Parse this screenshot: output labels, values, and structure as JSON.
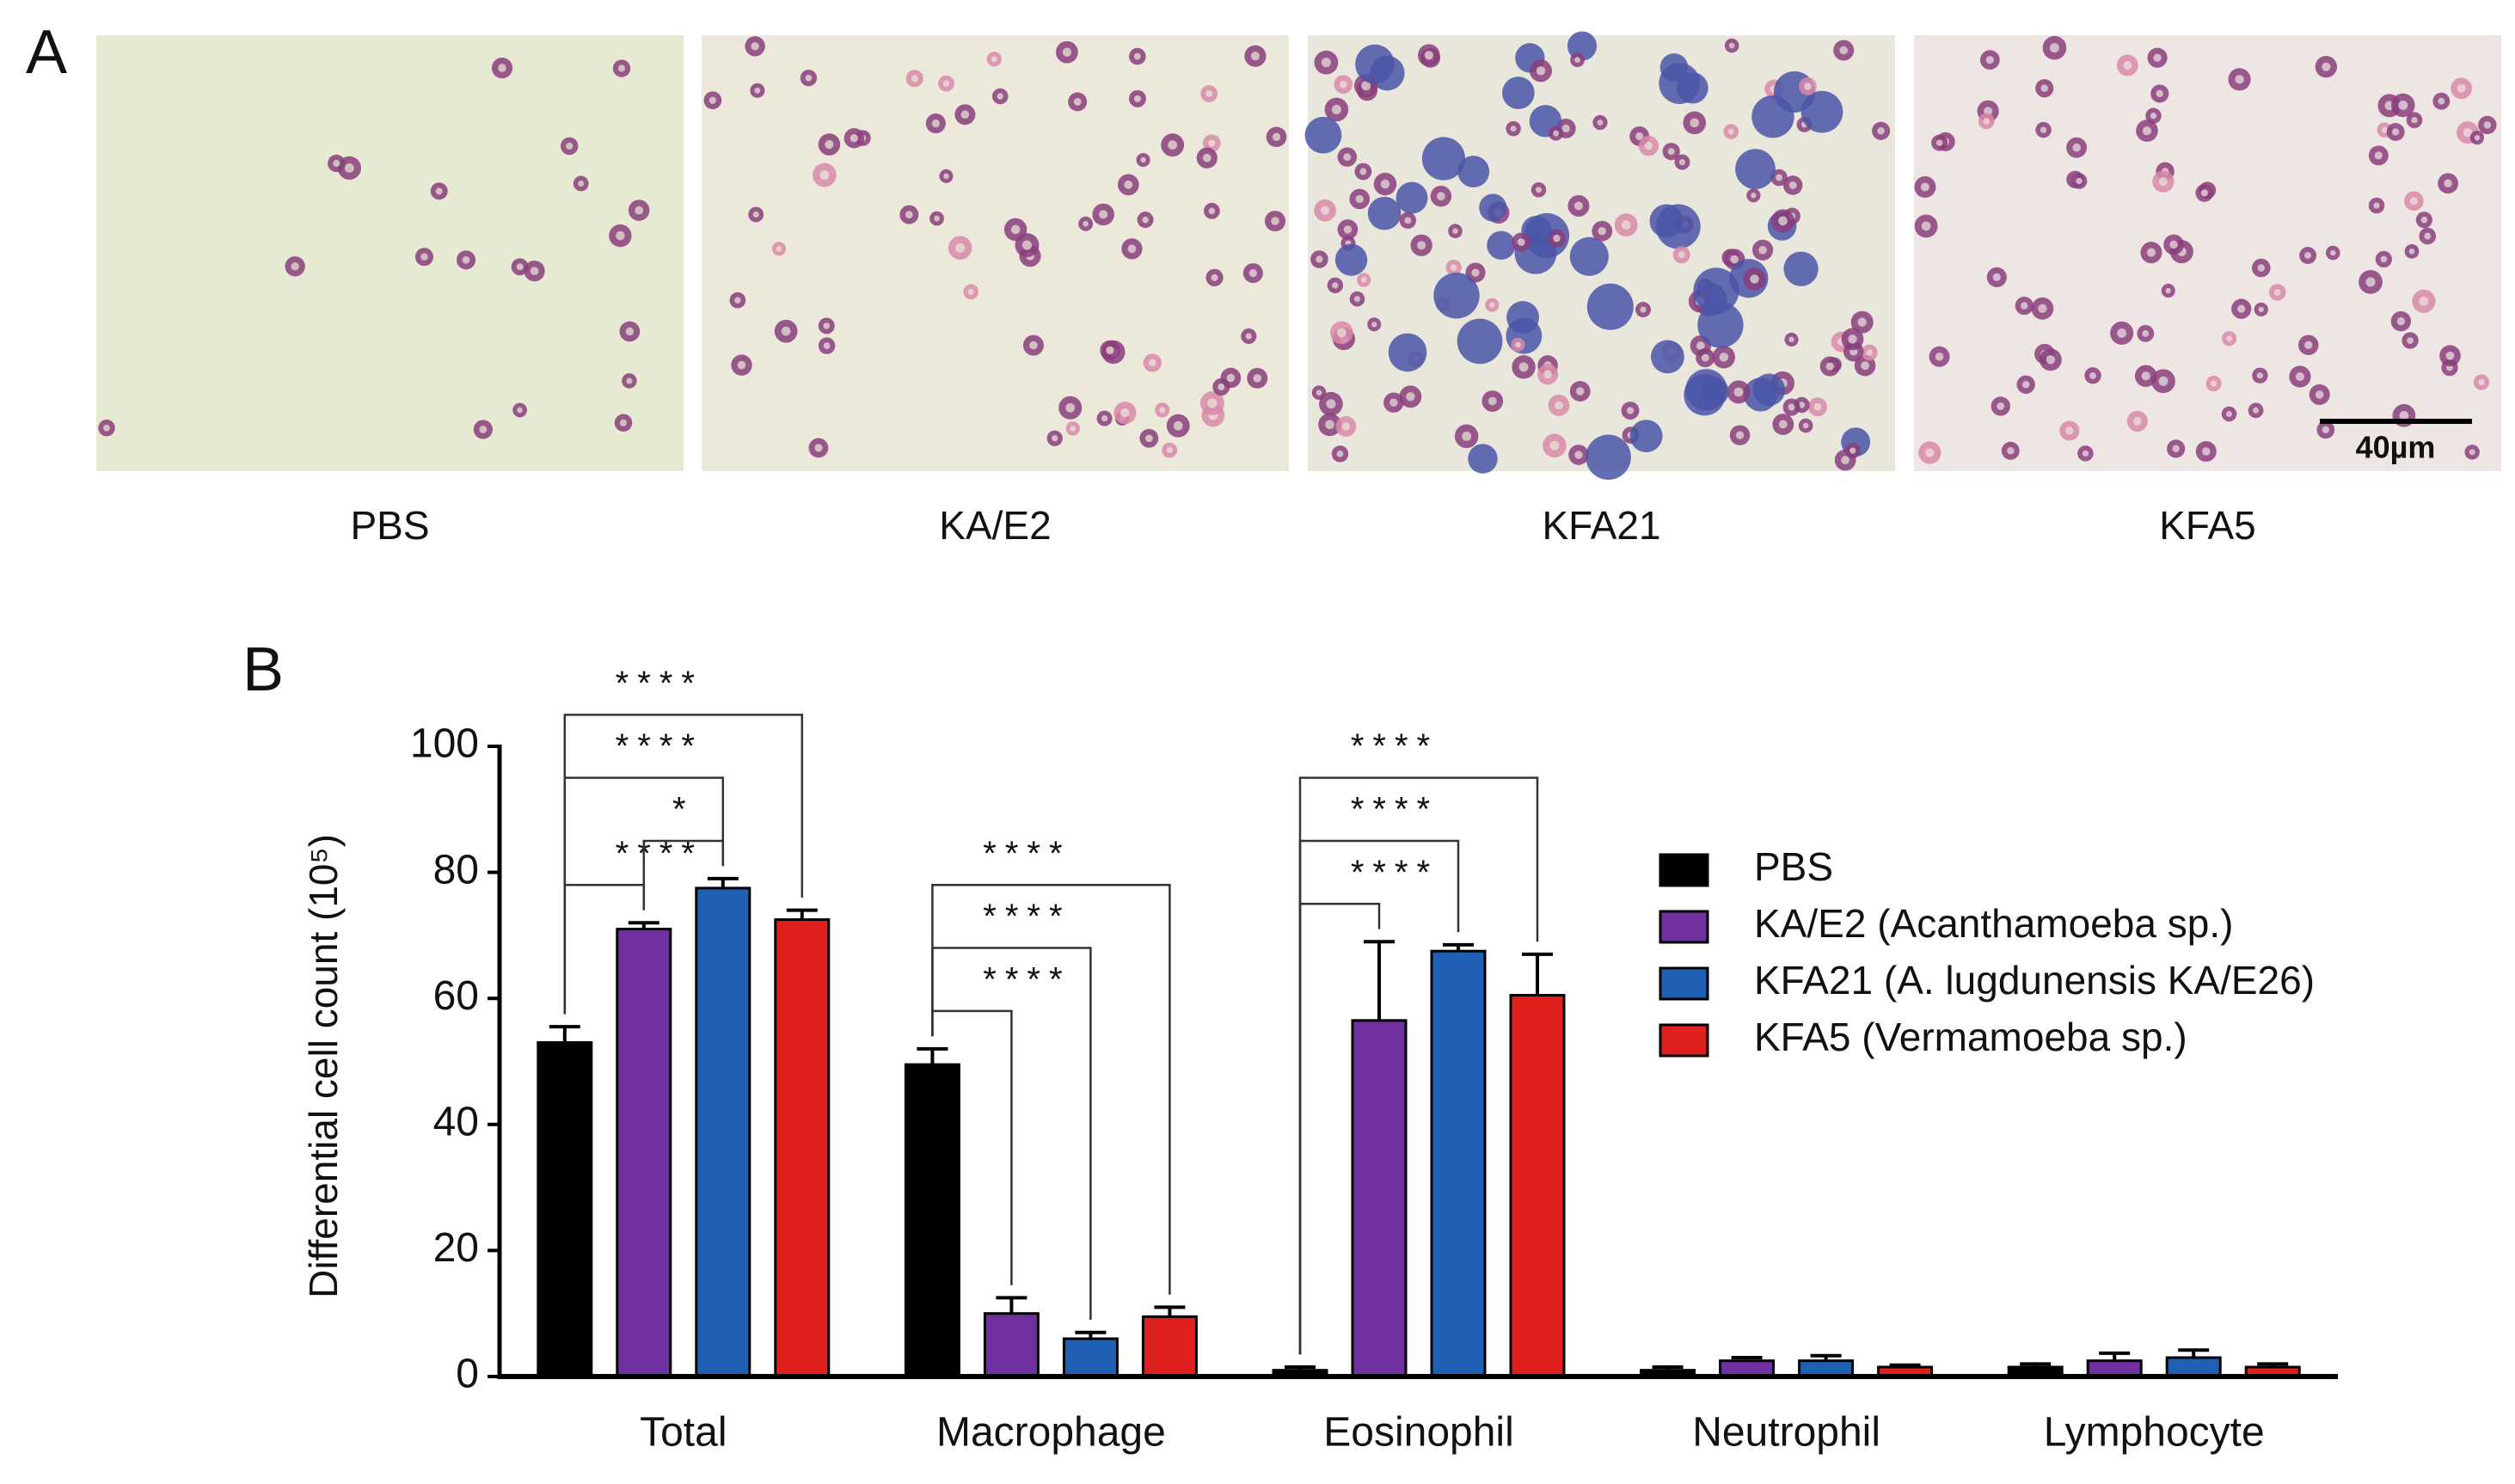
{
  "panel_a": {
    "label": "A",
    "images": [
      {
        "caption": "PBS"
      },
      {
        "caption": "KA/E2"
      },
      {
        "caption": "KFA21"
      },
      {
        "caption": "KFA5"
      }
    ],
    "scale_bar": "40µm"
  },
  "panel_b": {
    "label": "B"
  },
  "chart_data": {
    "type": "bar",
    "y_label": "Differential cell count (10⁵)",
    "categories": [
      "Total",
      "Macrophage",
      "Eosinophil",
      "Neutrophil",
      "Lymphocyte"
    ],
    "series": [
      {
        "name": "PBS",
        "color": "#000000",
        "values": [
          53,
          49.5,
          1,
          1,
          1.5
        ],
        "errors": [
          2.5,
          2.5,
          0.5,
          0.5,
          0.5
        ]
      },
      {
        "name": "KA/E2 (Acanthamoeba sp.)",
        "color": "#7030a0",
        "values": [
          71,
          10,
          56.5,
          2.5,
          2.5
        ],
        "errors": [
          1,
          2.5,
          12.5,
          0.5,
          1.2
        ]
      },
      {
        "name": "KFA21 (A. lugdunensis KA/E26)",
        "color": "#1f5fb4",
        "values": [
          77.5,
          6,
          67.5,
          2.5,
          3
        ],
        "errors": [
          1.5,
          1,
          1,
          0.8,
          1.2
        ]
      },
      {
        "name": "KFA5 (Vermamoeba sp.)",
        "color": "#e0201e",
        "values": [
          72.5,
          9.5,
          60.5,
          1.5,
          1.5
        ],
        "errors": [
          1.5,
          1.5,
          6.5,
          0.3,
          0.5
        ]
      }
    ],
    "annotations": [
      {
        "text": "****",
        "category": 0,
        "series": [
          0,
          1
        ]
      },
      {
        "text": "*",
        "category": 0,
        "series": [
          1,
          2
        ]
      },
      {
        "text": "****",
        "category": 0,
        "series": [
          0,
          2
        ]
      },
      {
        "text": "****",
        "category": 0,
        "series": [
          0,
          3
        ]
      },
      {
        "text": "****",
        "category": 1,
        "series": [
          0,
          1
        ]
      },
      {
        "text": "****",
        "category": 1,
        "series": [
          0,
          2
        ]
      },
      {
        "text": "****",
        "category": 1,
        "series": [
          0,
          3
        ]
      },
      {
        "text": "****",
        "category": 2,
        "series": [
          0,
          1
        ]
      },
      {
        "text": "****",
        "category": 2,
        "series": [
          0,
          2
        ]
      },
      {
        "text": "****",
        "category": 2,
        "series": [
          0,
          3
        ]
      }
    ],
    "ylim": [
      0,
      100
    ],
    "yticks": [
      0,
      20,
      40,
      60,
      80,
      100
    ],
    "legend": "right"
  }
}
